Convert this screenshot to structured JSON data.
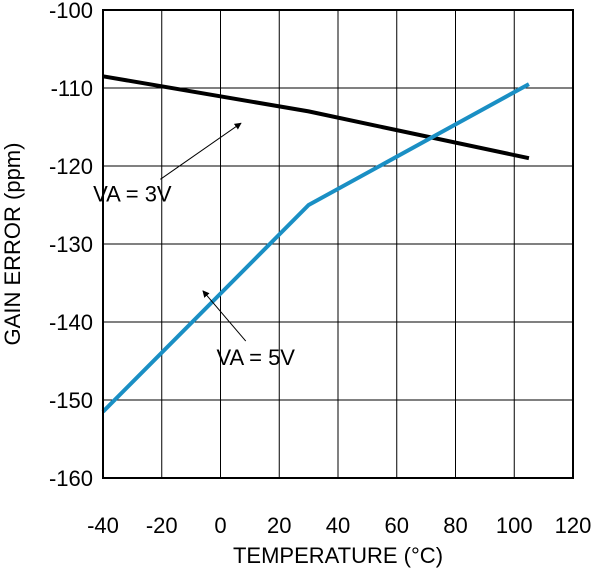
{
  "chart_data": {
    "type": "line",
    "xlabel": "TEMPERATURE (°C)",
    "ylabel": "GAIN ERROR (ppm)",
    "xlim": [
      -40,
      120
    ],
    "ylim": [
      -160,
      -100
    ],
    "x_ticks": [
      -40,
      -20,
      0,
      20,
      40,
      60,
      80,
      100,
      120
    ],
    "y_ticks": [
      -100,
      -110,
      -120,
      -130,
      -140,
      -150,
      -160
    ],
    "x_tick_labels": [
      "-40",
      "-20",
      "0",
      "20",
      "40",
      "60",
      "80",
      "100",
      "120"
    ],
    "y_tick_labels": [
      "-100",
      "-110",
      "-120",
      "-130",
      "-140",
      "-150",
      "-160"
    ],
    "grid": true,
    "series": [
      {
        "name": "VA = 3V",
        "color": "#000000",
        "x": [
          -40,
          30,
          105
        ],
        "y": [
          -108.5,
          -113,
          -119
        ]
      },
      {
        "name": "VA = 5V",
        "color": "#1a8fc4",
        "x": [
          -40,
          30,
          105
        ],
        "y": [
          -151.5,
          -125,
          -109.5
        ]
      }
    ],
    "annotations": [
      {
        "text": "VA = 3V",
        "series": "VA = 3V",
        "label_at": [
          -30,
          -123.5
        ],
        "arrow_to": [
          7,
          -114.5
        ]
      },
      {
        "text": "VA = 5V",
        "series": "VA = 5V",
        "label_at": [
          12,
          -144.5
        ],
        "arrow_to": [
          -6,
          -136
        ]
      }
    ]
  }
}
